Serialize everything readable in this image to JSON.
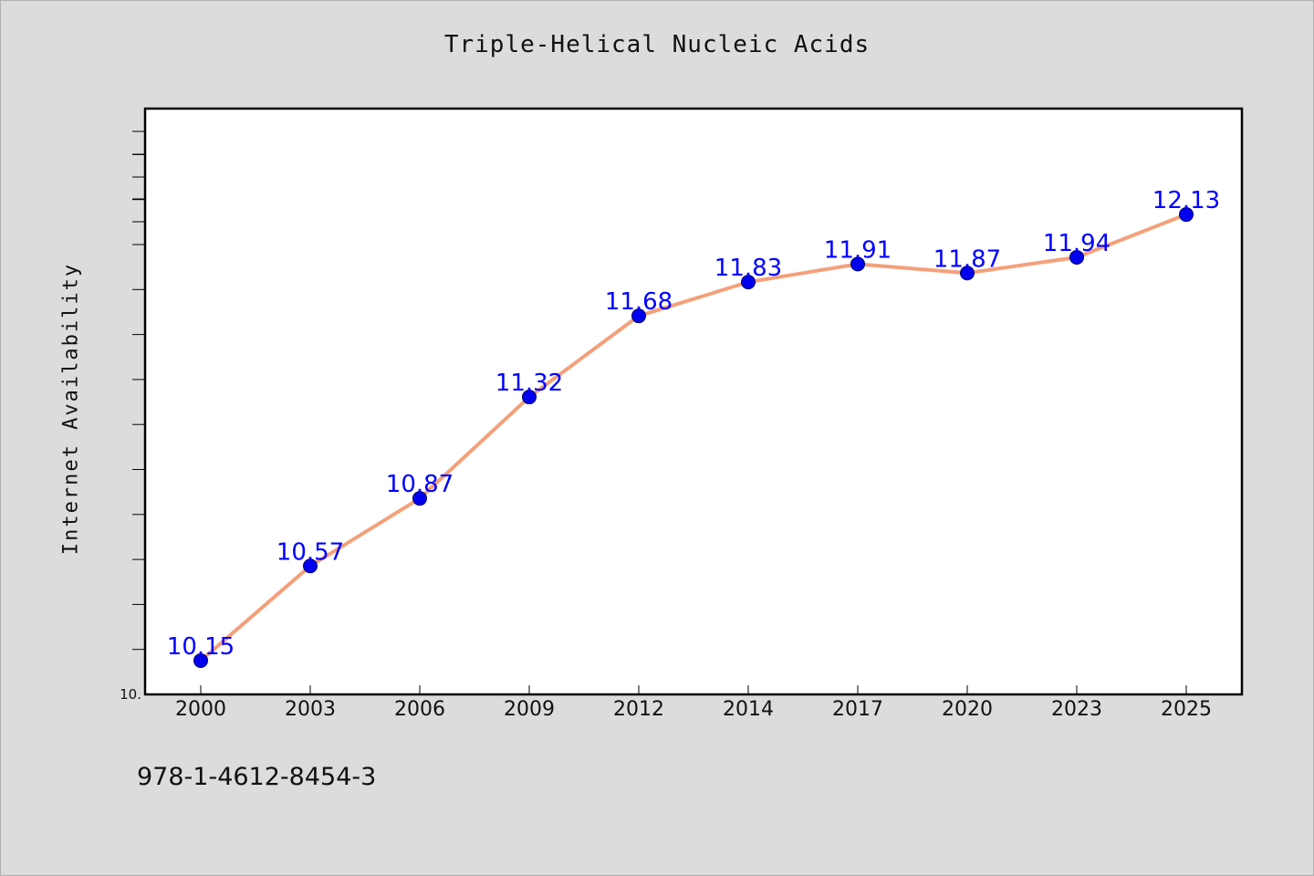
{
  "chart_data": {
    "type": "line",
    "title": "Triple-Helical Nucleic Acids",
    "xlabel": "",
    "ylabel": "Internet Availability",
    "categories": [
      "2000",
      "2003",
      "2006",
      "2009",
      "2012",
      "2014",
      "2017",
      "2020",
      "2023",
      "2025"
    ],
    "series": [
      {
        "values": [
          10.15,
          10.57,
          10.87,
          11.32,
          11.68,
          11.83,
          11.91,
          11.87,
          11.94,
          12.13
        ]
      }
    ],
    "data_labels": [
      "10.15",
      "10.57",
      "10.87",
      "11.32",
      "11.68",
      "11.83",
      "11.91",
      "11.87",
      "11.94",
      "12.13"
    ],
    "ylim": [
      10.0,
      12.6
    ],
    "y_tick_label": "10.",
    "grid": false,
    "legend": "none",
    "colors": {
      "line": "#f4a07a",
      "marker": "#0000ee",
      "data_label": "#0000ff",
      "plot_bg": "#ffffff",
      "page_bg": "#dcdcdc"
    }
  },
  "footer_text": "978-1-4612-8454-3"
}
